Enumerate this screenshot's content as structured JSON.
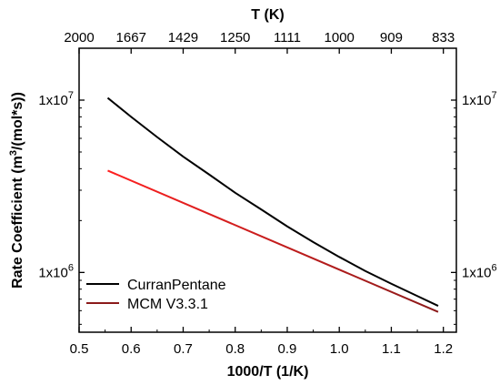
{
  "chart_data": {
    "type": "line",
    "xlabel": "1000/T (1/K)",
    "ylabel": "Rate Coefficient (m³/(mol*s))",
    "top_axis_label": "T (K)",
    "x_ticks": [
      0.5,
      0.6,
      0.7,
      0.8,
      0.9,
      1.0,
      1.1,
      1.2
    ],
    "x_tick_labels": [
      "0.5",
      "0.6",
      "0.7",
      "0.8",
      "0.9",
      "1.0",
      "1.1",
      "1.2"
    ],
    "top_ticks": [
      {
        "x": 0.5,
        "label": "2000"
      },
      {
        "x": 0.6,
        "label": "1667"
      },
      {
        "x": 0.7,
        "label": "1429"
      },
      {
        "x": 0.8,
        "label": "1250"
      },
      {
        "x": 0.9,
        "label": "1111"
      },
      {
        "x": 1.0,
        "label": "1000"
      },
      {
        "x": 1.1,
        "label": "909"
      },
      {
        "x": 1.2,
        "label": "833"
      }
    ],
    "y_scale": "log",
    "y_ticks": [
      {
        "value": 1000000,
        "base": "1x10",
        "exp": "6"
      },
      {
        "value": 10000000,
        "base": "1x10",
        "exp": "7"
      }
    ],
    "xlim": [
      0.5,
      1.225
    ],
    "ylim": [
      450000,
      20000000
    ],
    "legend_position": "bottom-left",
    "series": [
      {
        "name": "CurranPentane",
        "color": "#000000",
        "x": [
          0.555,
          0.6,
          0.65,
          0.7,
          0.75,
          0.8,
          0.85,
          0.9,
          0.95,
          1.0,
          1.05,
          1.1,
          1.15,
          1.19
        ],
        "y": [
          10300000,
          8000000,
          6100000,
          4700000,
          3700000,
          2900000,
          2320000,
          1850000,
          1500000,
          1230000,
          1020000,
          860000,
          730000,
          640000
        ]
      },
      {
        "name": "MCM V3.3.1",
        "color_start": "#ff2020",
        "color_end": "#8b1a1a",
        "x": [
          0.555,
          1.19
        ],
        "y": [
          3900000,
          590000
        ]
      }
    ]
  }
}
